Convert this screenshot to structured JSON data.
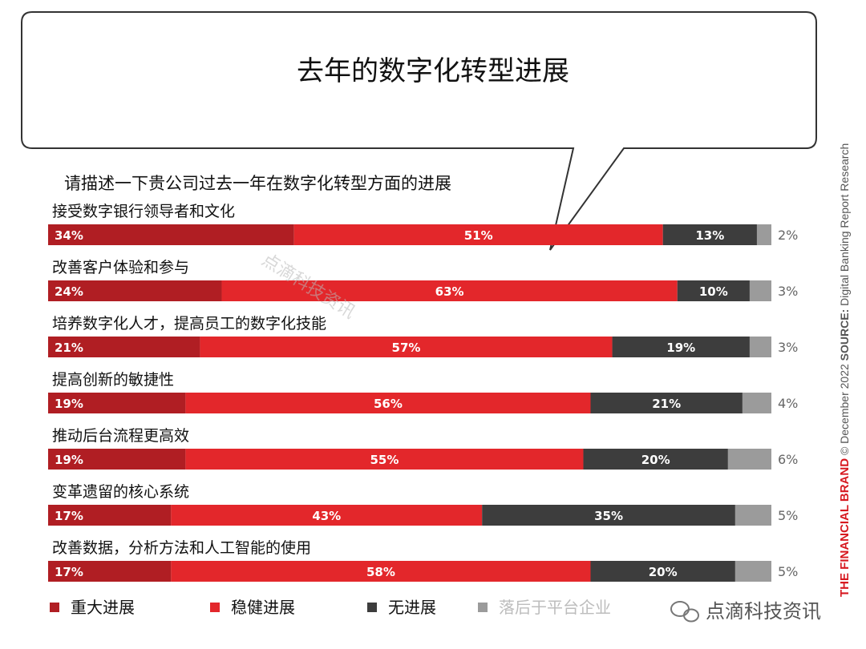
{
  "chart_data": {
    "type": "bar",
    "stacked": true,
    "orientation": "horizontal",
    "title": "去年的数字化转型进展",
    "subtitle": "请描述一下贵公司过去一年在数字化转型方面的进展",
    "categories": [
      "接受数字银行领导者和文化",
      "改善客户体验和参与",
      "培养数字化人才，提高员工的数字化技能",
      "提高创新的敏捷性",
      "推动后台流程更高效",
      "变革遗留的核心系统",
      "改善数据，分析方法和人工智能的使用"
    ],
    "series": [
      {
        "name": "重大进展",
        "color": "#b01e23",
        "values": [
          34,
          24,
          21,
          19,
          19,
          17,
          17
        ]
      },
      {
        "name": "稳健进展",
        "color": "#e3272b",
        "values": [
          51,
          63,
          57,
          56,
          55,
          43,
          58
        ]
      },
      {
        "name": "无进展",
        "color": "#3d3d3d",
        "values": [
          13,
          10,
          19,
          21,
          20,
          35,
          20
        ]
      },
      {
        "name": "落后于平台企业",
        "color": "#9b9b9b",
        "values": [
          2,
          3,
          3,
          4,
          6,
          5,
          5
        ]
      }
    ],
    "value_suffix": "%",
    "legend_position": "bottom",
    "grid": false
  },
  "side_note": {
    "brand": "THE FINANCIAL BRAND",
    "copyright": "© December 2022",
    "source_label": "SOURCE:",
    "source_text": "Digital Banking Report Research"
  },
  "watermark": {
    "diagonal": "点滴科技资讯",
    "account": "点滴科技资讯"
  }
}
